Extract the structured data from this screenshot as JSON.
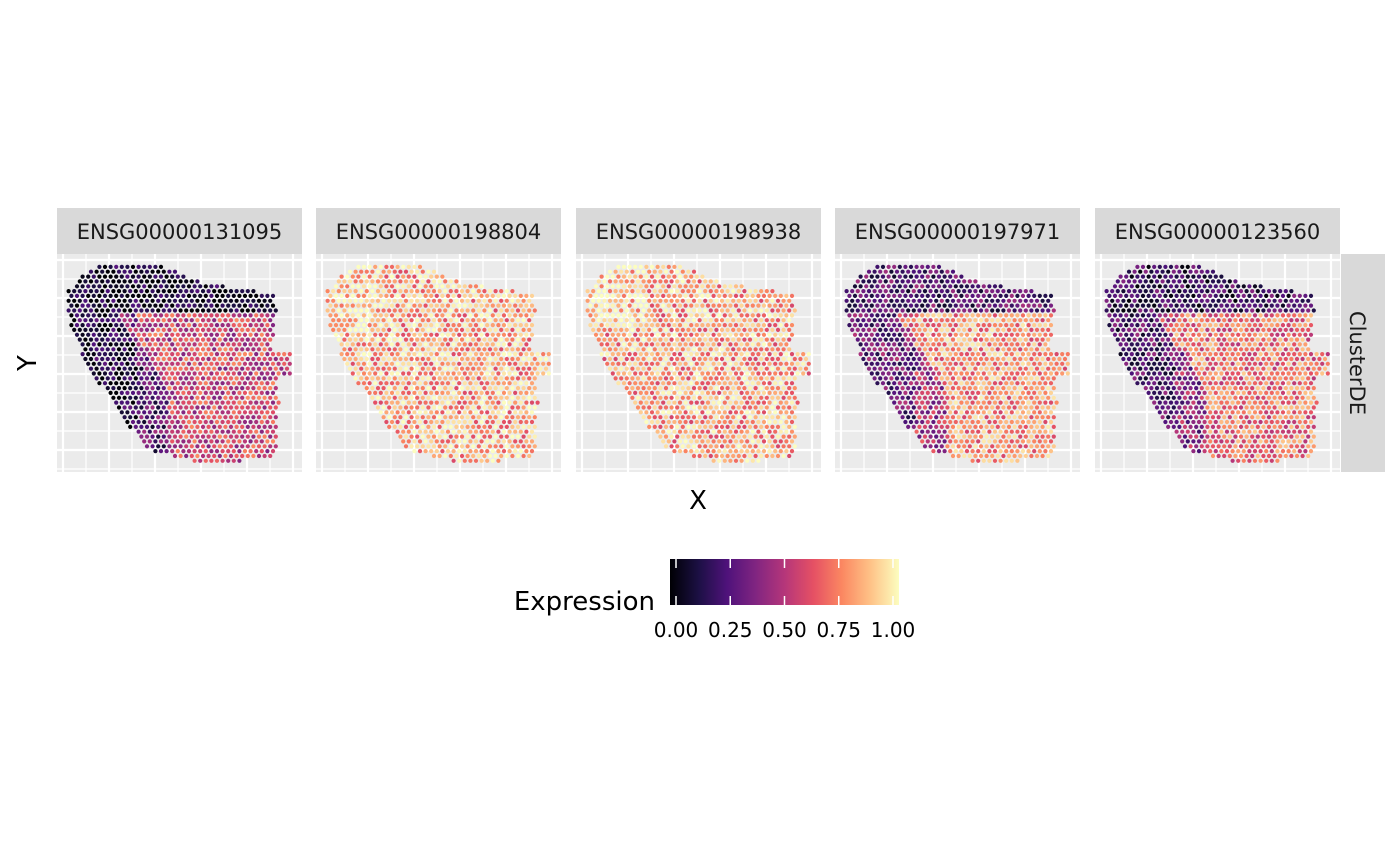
{
  "chart_data": {
    "type": "scatter",
    "subtype": "spatial-facet-hex-spots",
    "xlabel": "X",
    "ylabel": "Y",
    "row_strip": "ClusterDE",
    "facets": [
      {
        "name": "ENSG00000131095",
        "pattern": "low-top-high-middle",
        "mean": 0.42
      },
      {
        "name": "ENSG00000198804",
        "pattern": "high-everywhere",
        "mean": 0.82
      },
      {
        "name": "ENSG00000198938",
        "pattern": "high-everywhere",
        "mean": 0.8
      },
      {
        "name": "ENSG00000197971",
        "pattern": "low-top-high-middle",
        "mean": 0.62
      },
      {
        "name": "ENSG00000123560",
        "pattern": "low-top-high-middle",
        "mean": 0.55
      }
    ],
    "legend": {
      "title": "Expression",
      "type": "continuous-colorbar",
      "palette": "magma",
      "range": [
        0,
        1
      ],
      "ticks": [
        "0.00",
        "0.25",
        "0.50",
        "0.75",
        "1.00"
      ],
      "colors": [
        "#000004",
        "#1c1044",
        "#4f127b",
        "#812581",
        "#b5367a",
        "#e55064",
        "#fb8761",
        "#fec287",
        "#fcfdbf"
      ]
    },
    "panel_background": "#ebebeb",
    "grid_color": "#ffffff",
    "strip_background": "#d9d9d9",
    "grid": true
  }
}
